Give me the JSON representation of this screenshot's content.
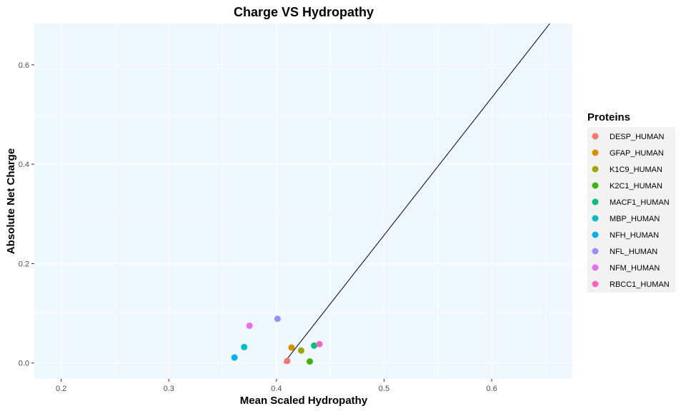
{
  "chart_data": {
    "type": "scatter",
    "title": "Charge VS Hydropathy",
    "xlabel": "Mean Scaled Hydropathy",
    "ylabel": "Absolute Net Charge",
    "xlim": [
      0.175,
      0.675
    ],
    "ylim": [
      -0.032,
      0.683
    ],
    "xticks": [
      "0.2",
      "0.3",
      "0.4",
      "0.5",
      "0.6"
    ],
    "yticks": [
      "0.0",
      "0.2",
      "0.4",
      "0.6"
    ],
    "grid": true,
    "panel_background": "#f0f8ff",
    "legend": {
      "title": "Proteins",
      "position": "right"
    },
    "series": [
      {
        "name": "DESP_HUMAN",
        "color": "#F8766D",
        "x": 0.41,
        "y": 0.004
      },
      {
        "name": "GFAP_HUMAN",
        "color": "#D89000",
        "x": 0.414,
        "y": 0.031
      },
      {
        "name": "K1C9_HUMAN",
        "color": "#A3A500",
        "x": 0.423,
        "y": 0.025
      },
      {
        "name": "K2C1_HUMAN",
        "color": "#39B600",
        "x": 0.431,
        "y": 0.003
      },
      {
        "name": "MACF1_HUMAN",
        "color": "#00BF7D",
        "x": 0.435,
        "y": 0.035
      },
      {
        "name": "MBP_HUMAN",
        "color": "#00BFC4",
        "x": 0.37,
        "y": 0.032
      },
      {
        "name": "NFH_HUMAN",
        "color": "#00B0F6",
        "x": 0.361,
        "y": 0.011
      },
      {
        "name": "NFL_HUMAN",
        "color": "#9590FF",
        "x": 0.401,
        "y": 0.089
      },
      {
        "name": "NFM_HUMAN",
        "color": "#E76BF3",
        "x": 0.375,
        "y": 0.075
      },
      {
        "name": "RBCC1_HUMAN",
        "color": "#FF62BC",
        "x": 0.44,
        "y": 0.038
      }
    ],
    "reference_line": {
      "x1": 0.407,
      "y1": 0.0,
      "x2": 0.654,
      "y2": 0.683
    }
  }
}
